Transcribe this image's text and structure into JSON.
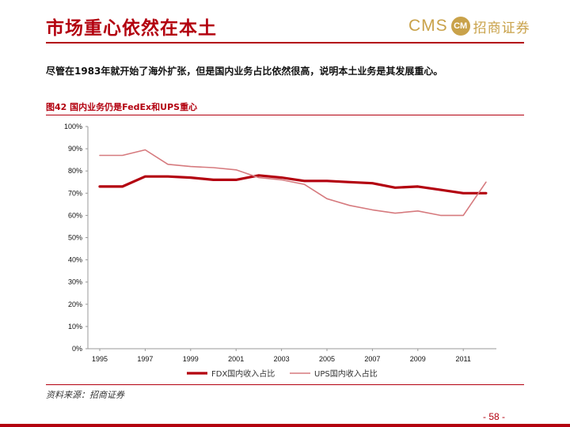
{
  "header": {
    "title": "市场重心依然在本土",
    "logo_latin": "CMS",
    "logo_chinese": "招商证券"
  },
  "subtitle": "尽管在1983年就开始了海外扩张，但是国内业务占比依然很高，说明本土业务是其发展重心。",
  "figure_caption": "图42  国内业务仍是FedEx和UPS重心",
  "source": "资料来源：招商证券",
  "page_number": "- 58 -",
  "colors": {
    "brand": "#b3000f",
    "fdx": "#b3000f",
    "ups": "#d67a7e",
    "logo": "#c9a24a"
  },
  "chart_data": {
    "type": "line",
    "title": "",
    "xlabel": "",
    "ylabel": "",
    "x": [
      1995,
      1996,
      1997,
      1998,
      1999,
      2000,
      2001,
      2002,
      2003,
      2004,
      2005,
      2006,
      2007,
      2008,
      2009,
      2010,
      2011,
      2012
    ],
    "x_tick_labels": [
      "1995",
      "1997",
      "1999",
      "2001",
      "2003",
      "2005",
      "2007",
      "2009",
      "2011"
    ],
    "y_tick_labels": [
      "0%",
      "10%",
      "20%",
      "30%",
      "40%",
      "50%",
      "60%",
      "70%",
      "80%",
      "90%",
      "100%"
    ],
    "ylim": [
      0,
      100
    ],
    "grid": false,
    "legend_position": "bottom",
    "series": [
      {
        "name": "FDX国内收入占比",
        "values": [
          73,
          73,
          77.5,
          77.5,
          77,
          76,
          76,
          78,
          77,
          75.5,
          75.5,
          75,
          74.5,
          72.5,
          73,
          71.5,
          70,
          70
        ]
      },
      {
        "name": "UPS国内收入占比",
        "values": [
          87,
          87,
          89.5,
          83,
          82,
          81.5,
          80.5,
          77,
          76,
          74,
          67.5,
          64.5,
          62.5,
          61,
          62,
          60,
          60,
          75
        ]
      }
    ]
  }
}
